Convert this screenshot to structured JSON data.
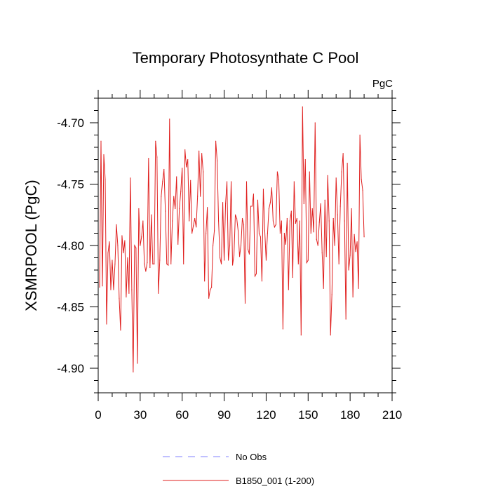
{
  "chart_data": {
    "type": "line",
    "title": "Temporary Photosynthate C Pool",
    "units_label": "PgC",
    "xlabel": "",
    "ylabel": "XSMRPOOL  (PgC)",
    "xlim": [
      0,
      210
    ],
    "ylim": [
      -4.92,
      -4.68
    ],
    "xticks": [
      0,
      30,
      60,
      90,
      120,
      150,
      180,
      210
    ],
    "yticks": [
      -4.7,
      -4.75,
      -4.8,
      -4.85,
      -4.9
    ],
    "ytick_labels": [
      "-4.70",
      "-4.75",
      "-4.80",
      "-4.85",
      "-4.90"
    ],
    "legend": [
      {
        "label": "No Obs",
        "style": "dashed",
        "color": "#8080ff"
      },
      {
        "label": "B1850_001 (1-200)",
        "style": "solid",
        "color": "#e0201f"
      }
    ],
    "series": [
      {
        "name": "B1850_001 (1-200)",
        "color": "#e0201f",
        "x_start": 1,
        "values": [
          -4.834,
          -4.715,
          -4.833,
          -4.726,
          -4.746,
          -4.864,
          -4.806,
          -4.797,
          -4.836,
          -4.812,
          -4.836,
          -4.815,
          -4.783,
          -4.8,
          -4.843,
          -4.869,
          -4.792,
          -4.806,
          -4.796,
          -4.842,
          -4.81,
          -4.839,
          -4.745,
          -4.836,
          -4.903,
          -4.8,
          -4.802,
          -4.896,
          -4.77,
          -4.8,
          -4.793,
          -4.78,
          -4.815,
          -4.821,
          -4.814,
          -4.729,
          -4.818,
          -4.775,
          -4.815,
          -4.815,
          -4.715,
          -4.728,
          -4.839,
          -4.812,
          -4.76,
          -4.748,
          -4.738,
          -4.772,
          -4.815,
          -4.816,
          -4.697,
          -4.815,
          -4.78,
          -4.76,
          -4.77,
          -4.744,
          -4.799,
          -4.77,
          -4.756,
          -4.737,
          -4.815,
          -4.722,
          -4.736,
          -4.73,
          -4.78,
          -4.747,
          -4.79,
          -4.784,
          -4.778,
          -4.785,
          -4.76,
          -4.723,
          -4.76,
          -4.725,
          -4.74,
          -4.829,
          -4.79,
          -4.769,
          -4.843,
          -4.836,
          -4.834,
          -4.8,
          -4.788,
          -4.715,
          -4.731,
          -4.78,
          -4.81,
          -4.815,
          -4.765,
          -4.812,
          -4.766,
          -4.748,
          -4.812,
          -4.8,
          -4.748,
          -4.816,
          -4.808,
          -4.775,
          -4.778,
          -4.788,
          -4.809,
          -4.8,
          -4.778,
          -4.783,
          -4.847,
          -4.748,
          -4.803,
          -4.807,
          -4.768,
          -4.768,
          -4.758,
          -4.825,
          -4.823,
          -4.763,
          -4.79,
          -4.793,
          -4.829,
          -4.754,
          -4.788,
          -4.812,
          -4.79,
          -4.77,
          -4.765,
          -4.753,
          -4.78,
          -4.785,
          -4.783,
          -4.74,
          -4.746,
          -4.79,
          -4.78,
          -4.868,
          -4.79,
          -4.799,
          -4.778,
          -4.836,
          -4.78,
          -4.772,
          -4.826,
          -4.748,
          -4.782,
          -4.778,
          -4.815,
          -4.78,
          -4.873,
          -4.687,
          -4.766,
          -4.73,
          -4.814,
          -4.812,
          -4.74,
          -4.79,
          -4.77,
          -4.789,
          -4.7,
          -4.795,
          -4.8,
          -4.781,
          -4.766,
          -4.806,
          -4.835,
          -4.763,
          -4.809,
          -4.743,
          -4.78,
          -4.873,
          -4.84,
          -4.778,
          -4.8,
          -4.745,
          -4.775,
          -4.815,
          -4.768,
          -4.74,
          -4.725,
          -4.78,
          -4.86,
          -4.733,
          -4.82,
          -4.808,
          -4.77,
          -4.842,
          -4.791,
          -4.805,
          -4.797,
          -4.835,
          -4.71,
          -4.746,
          -4.755,
          -4.793
        ]
      }
    ]
  }
}
